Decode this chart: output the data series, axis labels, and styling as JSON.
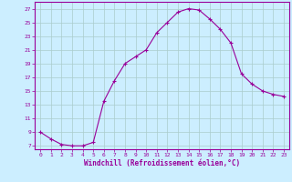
{
  "x": [
    0,
    1,
    2,
    3,
    4,
    5,
    6,
    7,
    8,
    9,
    10,
    11,
    12,
    13,
    14,
    15,
    16,
    17,
    18,
    19,
    20,
    21,
    22,
    23
  ],
  "y": [
    9.0,
    8.0,
    7.2,
    7.0,
    7.0,
    7.5,
    13.5,
    16.5,
    19.0,
    20.0,
    21.0,
    23.5,
    25.0,
    26.5,
    27.0,
    26.8,
    25.5,
    24.0,
    22.0,
    17.5,
    16.0,
    15.0,
    14.5,
    14.2
  ],
  "line_color": "#990099",
  "marker": "+",
  "bg_color": "#cceeff",
  "grid_color": "#aacccc",
  "xlabel": "Windchill (Refroidissement éolien,°C)",
  "xlabel_color": "#990099",
  "tick_color": "#990099",
  "xlim": [
    -0.5,
    23.5
  ],
  "ylim": [
    6.5,
    28.0
  ],
  "yticks": [
    7,
    9,
    11,
    13,
    15,
    17,
    19,
    21,
    23,
    25,
    27
  ],
  "xticks": [
    0,
    1,
    2,
    3,
    4,
    5,
    6,
    7,
    8,
    9,
    10,
    11,
    12,
    13,
    14,
    15,
    16,
    17,
    18,
    19,
    20,
    21,
    22,
    23
  ]
}
